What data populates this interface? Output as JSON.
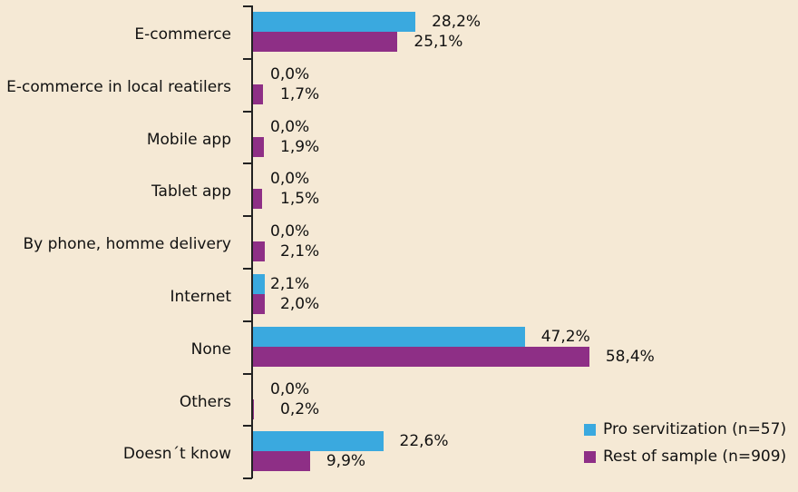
{
  "chart_data": {
    "type": "bar",
    "orientation": "horizontal",
    "title": "",
    "xlabel": "",
    "ylabel": "",
    "categories": [
      "E-commerce",
      "E-commerce in local reatilers",
      "Mobile app",
      "Tablet app",
      "By phone, homme delivery",
      "Internet",
      "None",
      "Others",
      "Doesn´t know"
    ],
    "series": [
      {
        "name": "Pro servitization (n=57)",
        "color": "#3aa9df",
        "values": [
          28.2,
          0.0,
          0.0,
          0.0,
          0.0,
          2.1,
          47.2,
          0.0,
          22.6
        ],
        "labels": [
          "28,2%",
          "0,0%",
          "0,0%",
          "0,0%",
          "0,0%",
          "2,1%",
          "47,2%",
          "0,0%",
          "22,6%"
        ]
      },
      {
        "name": "Rest of sample (n=909)",
        "color": "#8e2f86",
        "values": [
          25.1,
          1.7,
          1.9,
          1.5,
          2.1,
          2.0,
          58.4,
          0.2,
          9.9
        ],
        "labels": [
          "25,1%",
          "1,7%",
          "1,9%",
          "1,5%",
          "2,1%",
          "2,0%",
          "58,4%",
          "0,2%",
          "9,9%"
        ]
      }
    ],
    "xlim": [
      0,
      65
    ],
    "grid": false,
    "legend_position": "bottom-right",
    "value_axis_visible": false
  }
}
